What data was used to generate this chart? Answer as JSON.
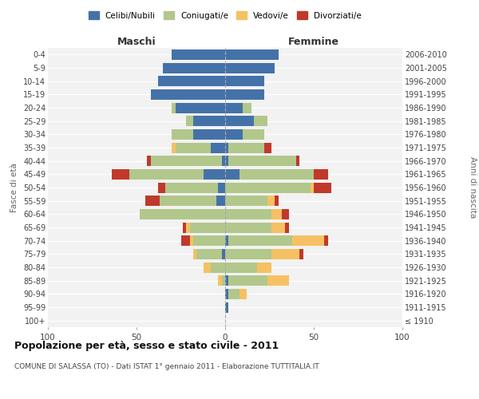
{
  "age_groups": [
    "100+",
    "95-99",
    "90-94",
    "85-89",
    "80-84",
    "75-79",
    "70-74",
    "65-69",
    "60-64",
    "55-59",
    "50-54",
    "45-49",
    "40-44",
    "35-39",
    "30-34",
    "25-29",
    "20-24",
    "15-19",
    "10-14",
    "5-9",
    "0-4"
  ],
  "birth_years": [
    "≤ 1910",
    "1911-1915",
    "1916-1920",
    "1921-1925",
    "1926-1930",
    "1931-1935",
    "1936-1940",
    "1941-1945",
    "1946-1950",
    "1951-1955",
    "1956-1960",
    "1961-1965",
    "1966-1970",
    "1971-1975",
    "1976-1980",
    "1981-1985",
    "1986-1990",
    "1991-1995",
    "1996-2000",
    "2001-2005",
    "2006-2010"
  ],
  "males": {
    "celibe": [
      0,
      0,
      0,
      0,
      0,
      2,
      0,
      0,
      0,
      5,
      4,
      12,
      2,
      8,
      18,
      18,
      28,
      42,
      38,
      35,
      30
    ],
    "coniugato": [
      0,
      0,
      0,
      2,
      8,
      14,
      18,
      20,
      48,
      32,
      30,
      42,
      40,
      20,
      12,
      4,
      2,
      0,
      0,
      0,
      0
    ],
    "vedovo": [
      0,
      0,
      0,
      2,
      4,
      2,
      2,
      2,
      0,
      0,
      0,
      0,
      0,
      2,
      0,
      0,
      0,
      0,
      0,
      0,
      0
    ],
    "divorziato": [
      0,
      0,
      0,
      0,
      0,
      0,
      5,
      2,
      0,
      8,
      4,
      10,
      2,
      0,
      0,
      0,
      0,
      0,
      0,
      0,
      0
    ]
  },
  "females": {
    "nubile": [
      0,
      2,
      2,
      2,
      0,
      0,
      2,
      0,
      0,
      0,
      0,
      8,
      2,
      2,
      10,
      16,
      10,
      22,
      22,
      28,
      30
    ],
    "coniugata": [
      0,
      0,
      6,
      22,
      18,
      26,
      36,
      26,
      26,
      24,
      48,
      42,
      38,
      20,
      12,
      8,
      5,
      0,
      0,
      0,
      0
    ],
    "vedova": [
      0,
      0,
      4,
      12,
      8,
      16,
      18,
      8,
      6,
      4,
      2,
      0,
      0,
      0,
      0,
      0,
      0,
      0,
      0,
      0,
      0
    ],
    "divorziata": [
      0,
      0,
      0,
      0,
      0,
      2,
      2,
      2,
      4,
      2,
      10,
      8,
      2,
      4,
      0,
      0,
      0,
      0,
      0,
      0,
      0
    ]
  },
  "colors": {
    "celibe": "#4472a8",
    "coniugato": "#b2c78b",
    "vedovo": "#f5c163",
    "divorziato": "#c0392b"
  },
  "title": "Popolazione per età, sesso e stato civile - 2011",
  "subtitle": "COMUNE DI SALASSA (TO) - Dati ISTAT 1° gennaio 2011 - Elaborazione TUTTITALIA.IT",
  "xlim": 100,
  "background_color": "#ffffff",
  "legend_labels": [
    "Celibi/Nubili",
    "Coniugati/e",
    "Vedovi/e",
    "Divorziati/e"
  ]
}
